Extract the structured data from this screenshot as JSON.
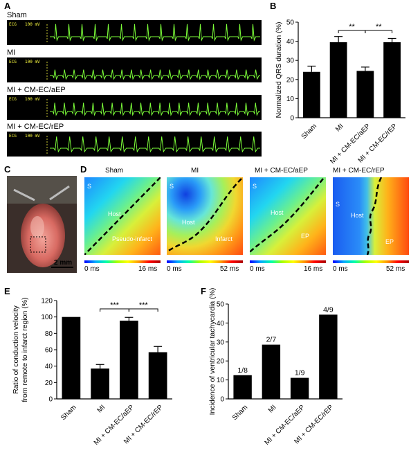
{
  "panels": {
    "a": "A",
    "b": "B",
    "c": "C",
    "d": "D",
    "e": "E",
    "f": "F"
  },
  "ecg": {
    "strips": [
      {
        "title": "Sham",
        "label": "ECG",
        "scale": "100 mV"
      },
      {
        "title": "MI",
        "label": "ECG",
        "scale": "100 mV"
      },
      {
        "title": "MI + CM-EC/aEP",
        "label": "ECG",
        "scale": "100 mV"
      },
      {
        "title": "MI + CM-EC/rEP",
        "label": "ECG",
        "scale": "100 mV"
      }
    ]
  },
  "photo": {
    "scale_label": "2 mm"
  },
  "maps": [
    {
      "title": "Sham",
      "labels": [
        "S",
        "Host",
        "Pseudo-infarct"
      ],
      "range": [
        "0 ms",
        "16 ms"
      ]
    },
    {
      "title": "MI",
      "labels": [
        "S",
        "Host",
        "Infarct"
      ],
      "range": [
        "0 ms",
        "52 ms"
      ]
    },
    {
      "title": "MI + CM-EC/aEP",
      "labels": [
        "S",
        "Host",
        "EP"
      ],
      "range": [
        "0 ms",
        "16 ms"
      ]
    },
    {
      "title": "MI + CM-EC/rEP",
      "labels": [
        "S",
        "Host",
        "EP"
      ],
      "range": [
        "0 ms",
        "52 ms"
      ]
    }
  ],
  "colors": {
    "bar": "#000000",
    "ecg_trace": "#7dff3a",
    "ecg_bg": "#000000",
    "dashed_line": "#000000"
  },
  "chart_data": [
    {
      "id": "B",
      "type": "bar",
      "categories": [
        "Sham",
        "MI",
        "MI + CM-EC/aEP",
        "MI + CM-EC/rEP"
      ],
      "values": [
        24,
        39.5,
        24.5,
        39.5
      ],
      "errors": [
        3,
        3,
        2,
        2
      ],
      "ylabel": "Normalized QRS duration (%)",
      "ylim": [
        0,
        50
      ],
      "yticks": [
        0,
        10,
        20,
        30,
        40,
        50
      ],
      "significance": [
        {
          "from": 1,
          "to": 2,
          "label": "**"
        },
        {
          "from": 2,
          "to": 3,
          "label": "**"
        }
      ]
    },
    {
      "id": "E",
      "type": "bar",
      "categories": [
        "Sham",
        "MI",
        "MI + CM-EC/aEP",
        "MI + CM-EC/rEP"
      ],
      "values": [
        100,
        37,
        95.5,
        57
      ],
      "errors": [
        0,
        5,
        4,
        7
      ],
      "ylabel": "Ratio of conduction velocity\nfrom remote to infarct region (%)",
      "ylim": [
        0,
        120
      ],
      "yticks": [
        0,
        20,
        40,
        60,
        80,
        100,
        120
      ],
      "significance": [
        {
          "from": 1,
          "to": 2,
          "label": "***"
        },
        {
          "from": 2,
          "to": 3,
          "label": "***"
        }
      ]
    },
    {
      "id": "F",
      "type": "bar",
      "categories": [
        "Sham",
        "MI",
        "MI + CM-EC/aEP",
        "MI + CM-EC/rEP"
      ],
      "values": [
        12.5,
        28.6,
        11.1,
        44.4
      ],
      "errors": [
        0,
        0,
        0,
        0
      ],
      "bar_labels": [
        "1/8",
        "2/7",
        "1/9",
        "4/9"
      ],
      "ylabel": "Incidence of ventricular tachycardia (%)",
      "ylim": [
        0,
        50
      ],
      "yticks": [
        0,
        10,
        20,
        30,
        40,
        50
      ],
      "significance": []
    }
  ]
}
